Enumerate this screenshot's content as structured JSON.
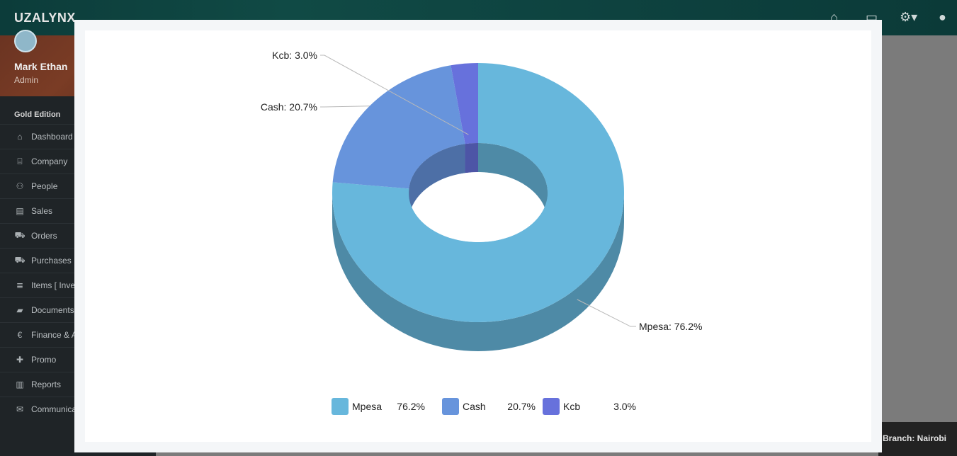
{
  "app": {
    "brand": "UZALYNX"
  },
  "header": {
    "icons": [
      "home-icon",
      "monitor-icon",
      "gear-icon",
      "user-icon"
    ]
  },
  "sidebar": {
    "user_name": "Mark Ethan",
    "user_role": "Admin",
    "edition": "Gold Edition",
    "items": [
      {
        "label": "Dashboard",
        "icon": "home-icon"
      },
      {
        "label": "Company",
        "icon": "bank-icon"
      },
      {
        "label": "People",
        "icon": "users-icon"
      },
      {
        "label": "Sales",
        "icon": "receipt-icon"
      },
      {
        "label": "Orders",
        "icon": "cart-icon"
      },
      {
        "label": "Purchases",
        "icon": "truck-icon"
      },
      {
        "label": "Items [ Inve",
        "icon": "database-icon"
      },
      {
        "label": "Documents",
        "icon": "folder-icon"
      },
      {
        "label": "Finance & A",
        "icon": "euro-icon"
      },
      {
        "label": "Promo",
        "icon": "gift-icon"
      },
      {
        "label": "Reports",
        "icon": "bar-chart-icon"
      },
      {
        "label": "Communica",
        "icon": "envelope-icon"
      }
    ]
  },
  "footer": {
    "branch": "Branch: Nairobi"
  },
  "chart_data": {
    "type": "pie",
    "style": "3d-donut",
    "slices": [
      {
        "name": "Mpesa",
        "value": 76.2,
        "label": "Mpesa: 76.2%",
        "legend_value": "76.2%",
        "color": "#67b7dc",
        "side": "#4e8aa6"
      },
      {
        "name": "Cash",
        "value": 20.7,
        "label": "Cash: 20.7%",
        "legend_value": "20.7%",
        "color": "#6794dc",
        "side": "#4d6fa6"
      },
      {
        "name": "Kcb",
        "value": 3.0,
        "label": "Kcb: 3.0%",
        "legend_value": "3.0%",
        "color": "#6771dc",
        "side": "#4d55a6"
      }
    ],
    "legend_position": "bottom"
  }
}
